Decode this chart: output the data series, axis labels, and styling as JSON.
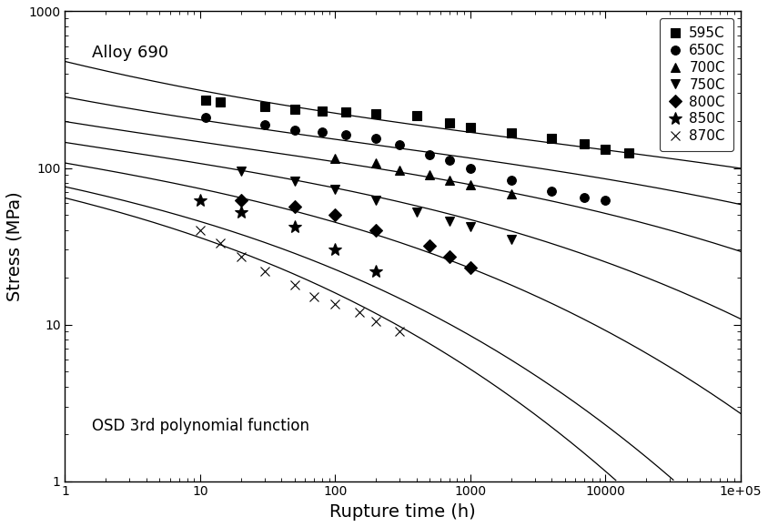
{
  "xlabel": "Rupture time (h)",
  "ylabel": "Stress (MPa)",
  "annotation": "Alloy 690",
  "annotation2": "OSD 3rd polynomial function",
  "xlim": [
    1,
    100000.0
  ],
  "ylim": [
    1,
    1000
  ],
  "legend_labels": [
    "595C",
    "650C",
    "700C",
    "750C",
    "800C",
    "850C",
    "870C"
  ],
  "markers": [
    "s",
    "o",
    "^",
    "v",
    "D",
    "*",
    "x"
  ],
  "data_595": [
    [
      11,
      270
    ],
    [
      14,
      265
    ],
    [
      30,
      248
    ],
    [
      50,
      238
    ],
    [
      80,
      232
    ],
    [
      120,
      228
    ],
    [
      200,
      222
    ],
    [
      400,
      215
    ],
    [
      700,
      195
    ],
    [
      1000,
      182
    ],
    [
      2000,
      168
    ],
    [
      4000,
      155
    ],
    [
      7000,
      142
    ],
    [
      10000,
      132
    ],
    [
      15000,
      125
    ]
  ],
  "data_650": [
    [
      11,
      210
    ],
    [
      30,
      188
    ],
    [
      50,
      175
    ],
    [
      80,
      170
    ],
    [
      120,
      163
    ],
    [
      200,
      155
    ],
    [
      300,
      140
    ],
    [
      500,
      122
    ],
    [
      700,
      112
    ],
    [
      1000,
      100
    ],
    [
      2000,
      84
    ],
    [
      4000,
      71
    ],
    [
      7000,
      65
    ],
    [
      10000,
      62
    ]
  ],
  "data_700": [
    [
      100,
      115
    ],
    [
      200,
      107
    ],
    [
      300,
      97
    ],
    [
      500,
      90
    ],
    [
      700,
      83
    ],
    [
      1000,
      78
    ],
    [
      2000,
      68
    ]
  ],
  "data_750": [
    [
      20,
      95
    ],
    [
      50,
      82
    ],
    [
      100,
      73
    ],
    [
      200,
      62
    ],
    [
      400,
      52
    ],
    [
      700,
      46
    ],
    [
      1000,
      42
    ],
    [
      2000,
      35
    ]
  ],
  "data_800": [
    [
      20,
      62
    ],
    [
      50,
      57
    ],
    [
      100,
      50
    ],
    [
      200,
      40
    ],
    [
      500,
      32
    ],
    [
      700,
      27
    ],
    [
      1000,
      23
    ]
  ],
  "data_850": [
    [
      10,
      62
    ],
    [
      20,
      52
    ],
    [
      50,
      42
    ],
    [
      100,
      30
    ],
    [
      200,
      22
    ]
  ],
  "data_870": [
    [
      10,
      40
    ],
    [
      14,
      33
    ],
    [
      20,
      27
    ],
    [
      30,
      22
    ],
    [
      50,
      18
    ],
    [
      70,
      15
    ],
    [
      100,
      13.5
    ],
    [
      150,
      12
    ],
    [
      200,
      10.5
    ],
    [
      300,
      9
    ]
  ],
  "curve_params": [
    {
      "temp": 595,
      "log_t_start": 0.0,
      "log_t_end": 5.5,
      "a": 2.75,
      "b": -0.065,
      "c": -0.8,
      "d": 2.5
    },
    {
      "temp": 650,
      "log_t_start": 0.0,
      "log_t_end": 5.5,
      "a": 2.6,
      "b": -0.072,
      "c": -0.8,
      "d": 2.5
    },
    {
      "temp": 700,
      "log_t_start": 0.0,
      "log_t_end": 5.5,
      "a": 2.47,
      "b": -0.08,
      "c": -0.8,
      "d": 2.5
    },
    {
      "temp": 750,
      "log_t_start": 0.0,
      "log_t_end": 5.5,
      "a": 2.33,
      "b": -0.09,
      "c": -0.8,
      "d": 2.5
    },
    {
      "temp": 800,
      "log_t_start": 0.0,
      "log_t_end": 5.5,
      "a": 2.18,
      "b": -0.105,
      "c": -0.8,
      "d": 2.5
    },
    {
      "temp": 850,
      "log_t_start": 0.0,
      "log_t_end": 5.5,
      "a": 2.02,
      "b": -0.125,
      "c": -0.8,
      "d": 2.5
    },
    {
      "temp": 870,
      "log_t_start": 0.0,
      "log_t_end": 5.5,
      "a": 1.92,
      "b": -0.14,
      "c": -0.8,
      "d": 2.5
    }
  ],
  "background_color": "#ffffff",
  "line_color": "#000000",
  "marker_color": "#000000",
  "markersize": 7,
  "linewidth": 0.9
}
